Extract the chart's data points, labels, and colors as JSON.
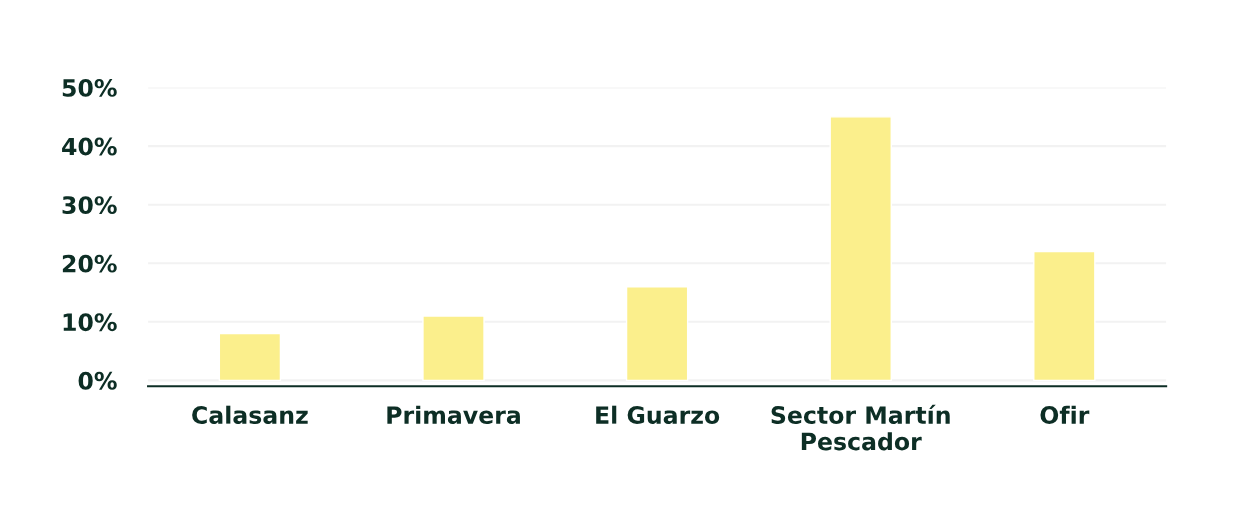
{
  "chart_data": {
    "type": "bar",
    "categories": [
      "Calasanz",
      "Primavera",
      "El Guarzo",
      "Sector Martín\nPescador",
      "Ofir"
    ],
    "values": [
      8,
      11,
      16,
      45,
      22
    ],
    "color": "#fbef8c",
    "ylim": [
      -1,
      50
    ],
    "yticks": [
      {
        "value": 0,
        "label": "0%"
      },
      {
        "value": 10,
        "label": "10%"
      },
      {
        "value": 20,
        "label": "20%"
      },
      {
        "value": 30,
        "label": "30%"
      },
      {
        "value": 40,
        "label": "40%"
      },
      {
        "value": 50,
        "label": "50%"
      }
    ],
    "grid": "y"
  }
}
